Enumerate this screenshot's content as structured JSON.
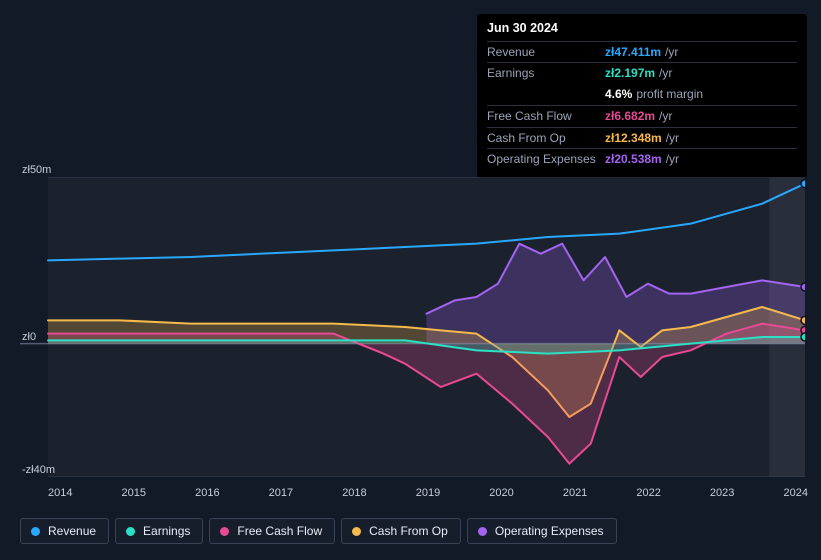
{
  "tooltip": {
    "date": "Jun 30 2024",
    "rows": [
      {
        "label": "Revenue",
        "value": "zł47.411m",
        "unit": "/yr",
        "color": "#2aa8ff"
      },
      {
        "label": "Earnings",
        "value": "zł2.197m",
        "unit": "/yr",
        "color": "#2be0c4"
      },
      {
        "label": "",
        "value": "4.6%",
        "unit": "profit margin",
        "color": "#ffffff",
        "noborder": true
      },
      {
        "label": "Free Cash Flow",
        "value": "zł6.682m",
        "unit": "/yr",
        "color": "#e84a93"
      },
      {
        "label": "Cash From Op",
        "value": "zł12.348m",
        "unit": "/yr",
        "color": "#f6b94c"
      },
      {
        "label": "Operating Expenses",
        "value": "zł20.538m",
        "unit": "/yr",
        "color": "#a364f2"
      }
    ]
  },
  "chart": {
    "type": "area-line",
    "background_color": "#131a27",
    "plot_background": "rgba(255,255,255,0.035)",
    "axis_color": "#c7cedb",
    "grid_color": "#39425a",
    "line_width": 2,
    "fill_opacity": 0.25,
    "font_size_axis": 11,
    "x_range": [
      2014,
      2024.6
    ],
    "y_range": [
      -40,
      50
    ],
    "y_ticks": [
      {
        "v": 50,
        "label": "zł50m"
      },
      {
        "v": 0,
        "label": "zł0"
      },
      {
        "v": -40,
        "label": "-zł40m"
      }
    ],
    "x_ticks": [
      2014,
      2015,
      2016,
      2017,
      2018,
      2019,
      2020,
      2021,
      2022,
      2023,
      2024
    ],
    "zero_line": true,
    "hover_band": {
      "x": 2024.1,
      "color": "rgba(255,255,255,0.06)"
    },
    "series": [
      {
        "name": "Revenue",
        "color": "#2aa8ff",
        "kind": "line",
        "points": [
          [
            2014,
            25
          ],
          [
            2015,
            25.5
          ],
          [
            2016,
            26
          ],
          [
            2017,
            27
          ],
          [
            2018,
            28
          ],
          [
            2019,
            29
          ],
          [
            2020,
            30
          ],
          [
            2021,
            32
          ],
          [
            2022,
            33
          ],
          [
            2023,
            36
          ],
          [
            2024,
            42
          ],
          [
            2024.6,
            48
          ]
        ]
      },
      {
        "name": "Operating Expenses",
        "color": "#a364f2",
        "kind": "area",
        "points": [
          [
            2019.3,
            9
          ],
          [
            2019.7,
            13
          ],
          [
            2020.0,
            14
          ],
          [
            2020.3,
            18
          ],
          [
            2020.6,
            30
          ],
          [
            2020.9,
            27
          ],
          [
            2021.2,
            30
          ],
          [
            2021.5,
            19
          ],
          [
            2021.8,
            26
          ],
          [
            2022.1,
            14
          ],
          [
            2022.4,
            18
          ],
          [
            2022.7,
            15
          ],
          [
            2023.0,
            15
          ],
          [
            2023.5,
            17
          ],
          [
            2024.0,
            19
          ],
          [
            2024.6,
            17
          ]
        ]
      },
      {
        "name": "Cash From Op",
        "color": "#f6b94c",
        "kind": "area",
        "points": [
          [
            2014,
            7
          ],
          [
            2015,
            7
          ],
          [
            2016,
            6
          ],
          [
            2017,
            6
          ],
          [
            2018,
            6
          ],
          [
            2019,
            5
          ],
          [
            2019.5,
            4
          ],
          [
            2020,
            3
          ],
          [
            2020.5,
            -4
          ],
          [
            2021,
            -14
          ],
          [
            2021.3,
            -22
          ],
          [
            2021.6,
            -18
          ],
          [
            2022,
            4
          ],
          [
            2022.3,
            -1
          ],
          [
            2022.6,
            4
          ],
          [
            2023,
            5
          ],
          [
            2023.5,
            8
          ],
          [
            2024,
            11
          ],
          [
            2024.6,
            7
          ]
        ]
      },
      {
        "name": "Free Cash Flow",
        "color": "#e84a93",
        "kind": "area",
        "points": [
          [
            2014,
            3
          ],
          [
            2015,
            3
          ],
          [
            2016,
            3
          ],
          [
            2017,
            3
          ],
          [
            2018,
            3
          ],
          [
            2018.7,
            -3
          ],
          [
            2019,
            -6
          ],
          [
            2019.5,
            -13
          ],
          [
            2020,
            -9
          ],
          [
            2020.5,
            -18
          ],
          [
            2021,
            -28
          ],
          [
            2021.3,
            -36
          ],
          [
            2021.6,
            -30
          ],
          [
            2022,
            -4
          ],
          [
            2022.3,
            -10
          ],
          [
            2022.6,
            -4
          ],
          [
            2023,
            -2
          ],
          [
            2023.5,
            3
          ],
          [
            2024,
            6
          ],
          [
            2024.6,
            4
          ]
        ]
      },
      {
        "name": "Earnings",
        "color": "#2be0c4",
        "kind": "area",
        "points": [
          [
            2014,
            1
          ],
          [
            2015,
            1
          ],
          [
            2016,
            1
          ],
          [
            2017,
            1
          ],
          [
            2018,
            1
          ],
          [
            2019,
            1
          ],
          [
            2020,
            -2
          ],
          [
            2021,
            -3
          ],
          [
            2022,
            -2
          ],
          [
            2023,
            0
          ],
          [
            2024,
            2
          ],
          [
            2024.6,
            2
          ]
        ]
      }
    ],
    "endpoint_markers": true
  },
  "legend": [
    {
      "label": "Revenue",
      "color": "#2aa8ff"
    },
    {
      "label": "Earnings",
      "color": "#2be0c4"
    },
    {
      "label": "Free Cash Flow",
      "color": "#e84a93"
    },
    {
      "label": "Cash From Op",
      "color": "#f6b94c"
    },
    {
      "label": "Operating Expenses",
      "color": "#a364f2"
    }
  ]
}
